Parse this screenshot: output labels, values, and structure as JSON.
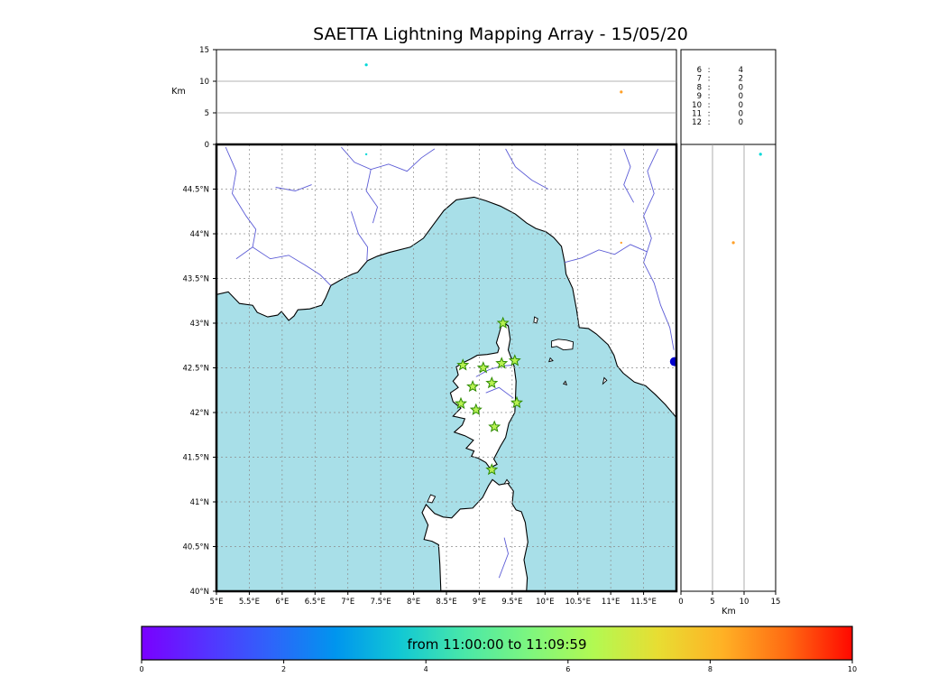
{
  "chart_data": {
    "type": "scatter",
    "title": "SAETTA Lightning Mapping Array - 15/05/20",
    "altitude_axis": {
      "label": "Km",
      "ticks": [
        0,
        5,
        10,
        15
      ],
      "grid": [
        5,
        10
      ],
      "range": [
        0,
        15
      ]
    },
    "map": {
      "lon_range": [
        5,
        12
      ],
      "lat_range": [
        40,
        45
      ],
      "grid_step": 0.5,
      "lon_tick_values": [
        5,
        5.5,
        6,
        6.5,
        7,
        7.5,
        8,
        8.5,
        9,
        9.5,
        10,
        10.5,
        11,
        11.5
      ],
      "lon_tick_labels": [
        "5°E",
        "5.5°E",
        "6°E",
        "6.5°E",
        "7°E",
        "7.5°E",
        "8°E",
        "8.5°E",
        "9°E",
        "9.5°E",
        "10°E",
        "10.5°E",
        "11°E",
        "11.5°E"
      ],
      "lat_tick_values": [
        40,
        40.5,
        41,
        41.5,
        42,
        42.5,
        43,
        43.5,
        44,
        44.5
      ],
      "lat_tick_labels": [
        "40°N",
        "40.5°N",
        "41°N",
        "41.5°N",
        "42°N",
        "42.5°N",
        "43°N",
        "43.5°N",
        "44°N",
        "44.5°N"
      ],
      "sea_color": "#a8dfe8",
      "land_color": "#ffffff",
      "coast_color": "#000000",
      "river_color": "#5c5cd6",
      "grid_color": "#8c8c8c",
      "station_style": {
        "fill": "#b8f152",
        "stroke": "#2e8b00"
      },
      "stations": [
        [
          9.36,
          43.0
        ],
        [
          8.75,
          42.53
        ],
        [
          9.06,
          42.5
        ],
        [
          9.34,
          42.55
        ],
        [
          9.54,
          42.58
        ],
        [
          8.9,
          42.29
        ],
        [
          9.19,
          42.33
        ],
        [
          8.72,
          42.1
        ],
        [
          8.95,
          42.03
        ],
        [
          9.57,
          42.11
        ],
        [
          9.23,
          41.84
        ],
        [
          9.19,
          41.36
        ]
      ],
      "markers": [
        {
          "lon": 11.97,
          "lat": 42.57,
          "r": 5,
          "color": "#0000cd"
        }
      ],
      "sources": [
        {
          "lon": 7.28,
          "lat": 44.89,
          "alt": 12.6,
          "color": "#00d8d8"
        },
        {
          "lon": 11.16,
          "lat": 43.9,
          "alt": 8.3,
          "color": "#ffa028"
        }
      ],
      "coastlines": {
        "mainland": [
          [
            5.0,
            43.32
          ],
          [
            5.18,
            43.35
          ],
          [
            5.35,
            43.22
          ],
          [
            5.55,
            43.2
          ],
          [
            5.62,
            43.12
          ],
          [
            5.78,
            43.07
          ],
          [
            5.93,
            43.09
          ],
          [
            5.99,
            43.13
          ],
          [
            6.1,
            43.03
          ],
          [
            6.18,
            43.08
          ],
          [
            6.24,
            43.15
          ],
          [
            6.42,
            43.16
          ],
          [
            6.6,
            43.2
          ],
          [
            6.66,
            43.28
          ],
          [
            6.74,
            43.42
          ],
          [
            6.93,
            43.5
          ],
          [
            7.07,
            43.55
          ],
          [
            7.15,
            43.57
          ],
          [
            7.3,
            43.7
          ],
          [
            7.45,
            43.75
          ],
          [
            7.62,
            43.79
          ],
          [
            7.95,
            43.85
          ],
          [
            8.15,
            43.95
          ],
          [
            8.3,
            44.1
          ],
          [
            8.46,
            44.26
          ],
          [
            8.65,
            44.38
          ],
          [
            8.92,
            44.41
          ],
          [
            9.1,
            44.37
          ],
          [
            9.32,
            44.31
          ],
          [
            9.55,
            44.22
          ],
          [
            9.72,
            44.12
          ],
          [
            9.86,
            44.06
          ],
          [
            10.02,
            44.02
          ],
          [
            10.13,
            43.96
          ],
          [
            10.25,
            43.86
          ],
          [
            10.3,
            43.68
          ],
          [
            10.32,
            43.55
          ],
          [
            10.42,
            43.39
          ],
          [
            10.48,
            43.15
          ],
          [
            10.52,
            42.95
          ],
          [
            10.66,
            42.94
          ],
          [
            10.78,
            42.88
          ],
          [
            10.96,
            42.76
          ],
          [
            11.05,
            42.64
          ],
          [
            11.1,
            42.52
          ],
          [
            11.19,
            42.44
          ],
          [
            11.36,
            42.34
          ],
          [
            11.53,
            42.3
          ],
          [
            11.68,
            42.2
          ],
          [
            11.83,
            42.09
          ],
          [
            12.05,
            41.9
          ],
          [
            12.08,
            45.08
          ],
          [
            4.92,
            45.08
          ],
          [
            4.95,
            43.32
          ]
        ],
        "corsica": [
          [
            9.36,
            43.01
          ],
          [
            9.44,
            42.97
          ],
          [
            9.47,
            42.82
          ],
          [
            9.44,
            42.7
          ],
          [
            9.48,
            42.62
          ],
          [
            9.53,
            42.52
          ],
          [
            9.56,
            42.35
          ],
          [
            9.55,
            42.15
          ],
          [
            9.54,
            42.0
          ],
          [
            9.45,
            41.88
          ],
          [
            9.4,
            41.72
          ],
          [
            9.32,
            41.62
          ],
          [
            9.22,
            41.48
          ],
          [
            9.27,
            41.42
          ],
          [
            9.16,
            41.38
          ],
          [
            9.1,
            41.44
          ],
          [
            8.98,
            41.49
          ],
          [
            8.88,
            41.51
          ],
          [
            8.92,
            41.57
          ],
          [
            8.8,
            41.6
          ],
          [
            8.91,
            41.69
          ],
          [
            8.78,
            41.74
          ],
          [
            8.62,
            41.78
          ],
          [
            8.74,
            41.86
          ],
          [
            8.78,
            41.93
          ],
          [
            8.6,
            41.96
          ],
          [
            8.72,
            42.05
          ],
          [
            8.6,
            42.12
          ],
          [
            8.56,
            42.22
          ],
          [
            8.68,
            42.28
          ],
          [
            8.6,
            42.35
          ],
          [
            8.68,
            42.42
          ],
          [
            8.65,
            42.51
          ],
          [
            8.76,
            42.56
          ],
          [
            8.87,
            42.6
          ],
          [
            8.97,
            42.64
          ],
          [
            9.12,
            42.65
          ],
          [
            9.28,
            42.67
          ],
          [
            9.3,
            42.72
          ],
          [
            9.26,
            42.78
          ],
          [
            9.3,
            42.88
          ],
          [
            9.33,
            42.96
          ]
        ],
        "sardinia": [
          [
            8.42,
            39.9
          ],
          [
            8.4,
            40.3
          ],
          [
            8.38,
            40.52
          ],
          [
            8.28,
            40.56
          ],
          [
            8.16,
            40.58
          ],
          [
            8.22,
            40.74
          ],
          [
            8.13,
            40.88
          ],
          [
            8.19,
            40.97
          ],
          [
            8.32,
            40.87
          ],
          [
            8.45,
            40.83
          ],
          [
            8.58,
            40.82
          ],
          [
            8.71,
            40.92
          ],
          [
            8.9,
            40.93
          ],
          [
            9.05,
            41.05
          ],
          [
            9.14,
            41.18
          ],
          [
            9.2,
            41.25
          ],
          [
            9.3,
            41.19
          ],
          [
            9.43,
            41.21
          ],
          [
            9.52,
            41.12
          ],
          [
            9.5,
            40.98
          ],
          [
            9.56,
            40.91
          ],
          [
            9.64,
            40.89
          ],
          [
            9.7,
            40.77
          ],
          [
            9.74,
            40.55
          ],
          [
            9.68,
            40.35
          ],
          [
            9.73,
            40.15
          ],
          [
            9.71,
            39.9
          ]
        ],
        "islands": [
          [
            [
              8.21,
              41.0
            ],
            [
              8.26,
              41.08
            ],
            [
              8.33,
              41.06
            ],
            [
              8.28,
              40.99
            ]
          ],
          [
            [
              10.1,
              42.73
            ],
            [
              10.1,
              42.8
            ],
            [
              10.2,
              42.82
            ],
            [
              10.33,
              42.81
            ],
            [
              10.43,
              42.79
            ],
            [
              10.42,
              42.71
            ],
            [
              10.28,
              42.7
            ],
            [
              10.18,
              42.74
            ]
          ],
          [
            [
              9.83,
              43.01
            ],
            [
              9.84,
              43.07
            ],
            [
              9.89,
              43.05
            ],
            [
              9.87,
              43.0
            ]
          ],
          [
            [
              10.88,
              42.32
            ],
            [
              10.9,
              42.39
            ],
            [
              10.94,
              42.36
            ]
          ],
          [
            [
              10.06,
              42.57
            ],
            [
              10.08,
              42.61
            ],
            [
              10.12,
              42.58
            ]
          ],
          [
            [
              10.28,
              42.32
            ],
            [
              10.31,
              42.35
            ],
            [
              10.33,
              42.31
            ]
          ],
          [
            [
              9.38,
              41.2
            ],
            [
              9.42,
              41.25
            ],
            [
              9.46,
              41.21
            ]
          ]
        ]
      },
      "rivers": [
        [
          [
            5.14,
            44.97
          ],
          [
            5.3,
            44.7
          ],
          [
            5.24,
            44.45
          ],
          [
            5.45,
            44.2
          ],
          [
            5.6,
            44.05
          ],
          [
            5.55,
            43.85
          ],
          [
            5.3,
            43.72
          ]
        ],
        [
          [
            5.55,
            43.85
          ],
          [
            5.82,
            43.72
          ],
          [
            6.1,
            43.76
          ],
          [
            6.35,
            43.65
          ],
          [
            6.58,
            43.54
          ],
          [
            6.74,
            43.42
          ]
        ],
        [
          [
            5.9,
            44.52
          ],
          [
            6.2,
            44.48
          ],
          [
            6.45,
            44.55
          ]
        ],
        [
          [
            6.9,
            44.97
          ],
          [
            7.1,
            44.8
          ],
          [
            7.35,
            44.72
          ],
          [
            7.62,
            44.78
          ],
          [
            7.9,
            44.7
          ],
          [
            8.12,
            44.85
          ],
          [
            8.32,
            44.95
          ]
        ],
        [
          [
            7.35,
            44.72
          ],
          [
            7.28,
            44.48
          ],
          [
            7.45,
            44.3
          ],
          [
            7.38,
            44.12
          ]
        ],
        [
          [
            7.05,
            44.25
          ],
          [
            7.16,
            44.0
          ],
          [
            7.3,
            43.85
          ],
          [
            7.29,
            43.7
          ]
        ],
        [
          [
            9.4,
            44.95
          ],
          [
            9.55,
            44.75
          ],
          [
            9.8,
            44.6
          ],
          [
            10.05,
            44.5
          ]
        ],
        [
          [
            10.3,
            43.68
          ],
          [
            10.56,
            43.73
          ],
          [
            10.82,
            43.82
          ],
          [
            11.06,
            43.77
          ],
          [
            11.3,
            43.88
          ],
          [
            11.55,
            43.8
          ]
        ],
        [
          [
            11.2,
            44.95
          ],
          [
            11.3,
            44.75
          ],
          [
            11.2,
            44.55
          ],
          [
            11.35,
            44.35
          ]
        ],
        [
          [
            11.72,
            44.95
          ],
          [
            11.56,
            44.7
          ],
          [
            11.66,
            44.45
          ],
          [
            11.5,
            44.2
          ],
          [
            11.62,
            43.95
          ],
          [
            11.5,
            43.68
          ],
          [
            11.66,
            43.45
          ],
          [
            11.76,
            43.2
          ],
          [
            11.9,
            42.95
          ],
          [
            11.96,
            42.7
          ]
        ],
        [
          [
            8.95,
            42.4
          ],
          [
            9.15,
            42.48
          ],
          [
            9.35,
            42.52
          ],
          [
            9.5,
            42.53
          ]
        ],
        [
          [
            9.1,
            42.22
          ],
          [
            9.3,
            42.28
          ],
          [
            9.52,
            42.16
          ]
        ],
        [
          [
            9.3,
            40.15
          ],
          [
            9.44,
            40.42
          ],
          [
            9.38,
            40.6
          ]
        ]
      ]
    },
    "minute_counts": {
      "rows": [
        {
          "minute": "6",
          "count": "4",
          "color": "#000000"
        },
        {
          "minute": "7",
          "count": "2",
          "color": "#e80000"
        },
        {
          "minute": "8",
          "count": "0",
          "color": "#000000"
        },
        {
          "minute": "9",
          "count": "0",
          "color": "#000000"
        },
        {
          "minute": "10",
          "count": "0",
          "color": "#000000"
        },
        {
          "minute": "11",
          "count": "0",
          "color": "#000000"
        },
        {
          "minute": "12",
          "count": "0",
          "color": "#000000"
        }
      ]
    },
    "colorbar": {
      "label": "from 11:00:00 to 11:09:59",
      "range": [
        0,
        10
      ],
      "tick_values": [
        0,
        2,
        4,
        6,
        8,
        10
      ],
      "tick_labels": [
        "0",
        "2",
        "4",
        "6",
        "8",
        "10"
      ],
      "gradient": [
        "#7a00ff",
        "#5533ff",
        "#2e64fa",
        "#0095ee",
        "#12c8d4",
        "#4ae8a8",
        "#7df67f",
        "#b2f952",
        "#e8dd32",
        "#ffb125",
        "#ff6a12",
        "#ff0800"
      ]
    }
  }
}
